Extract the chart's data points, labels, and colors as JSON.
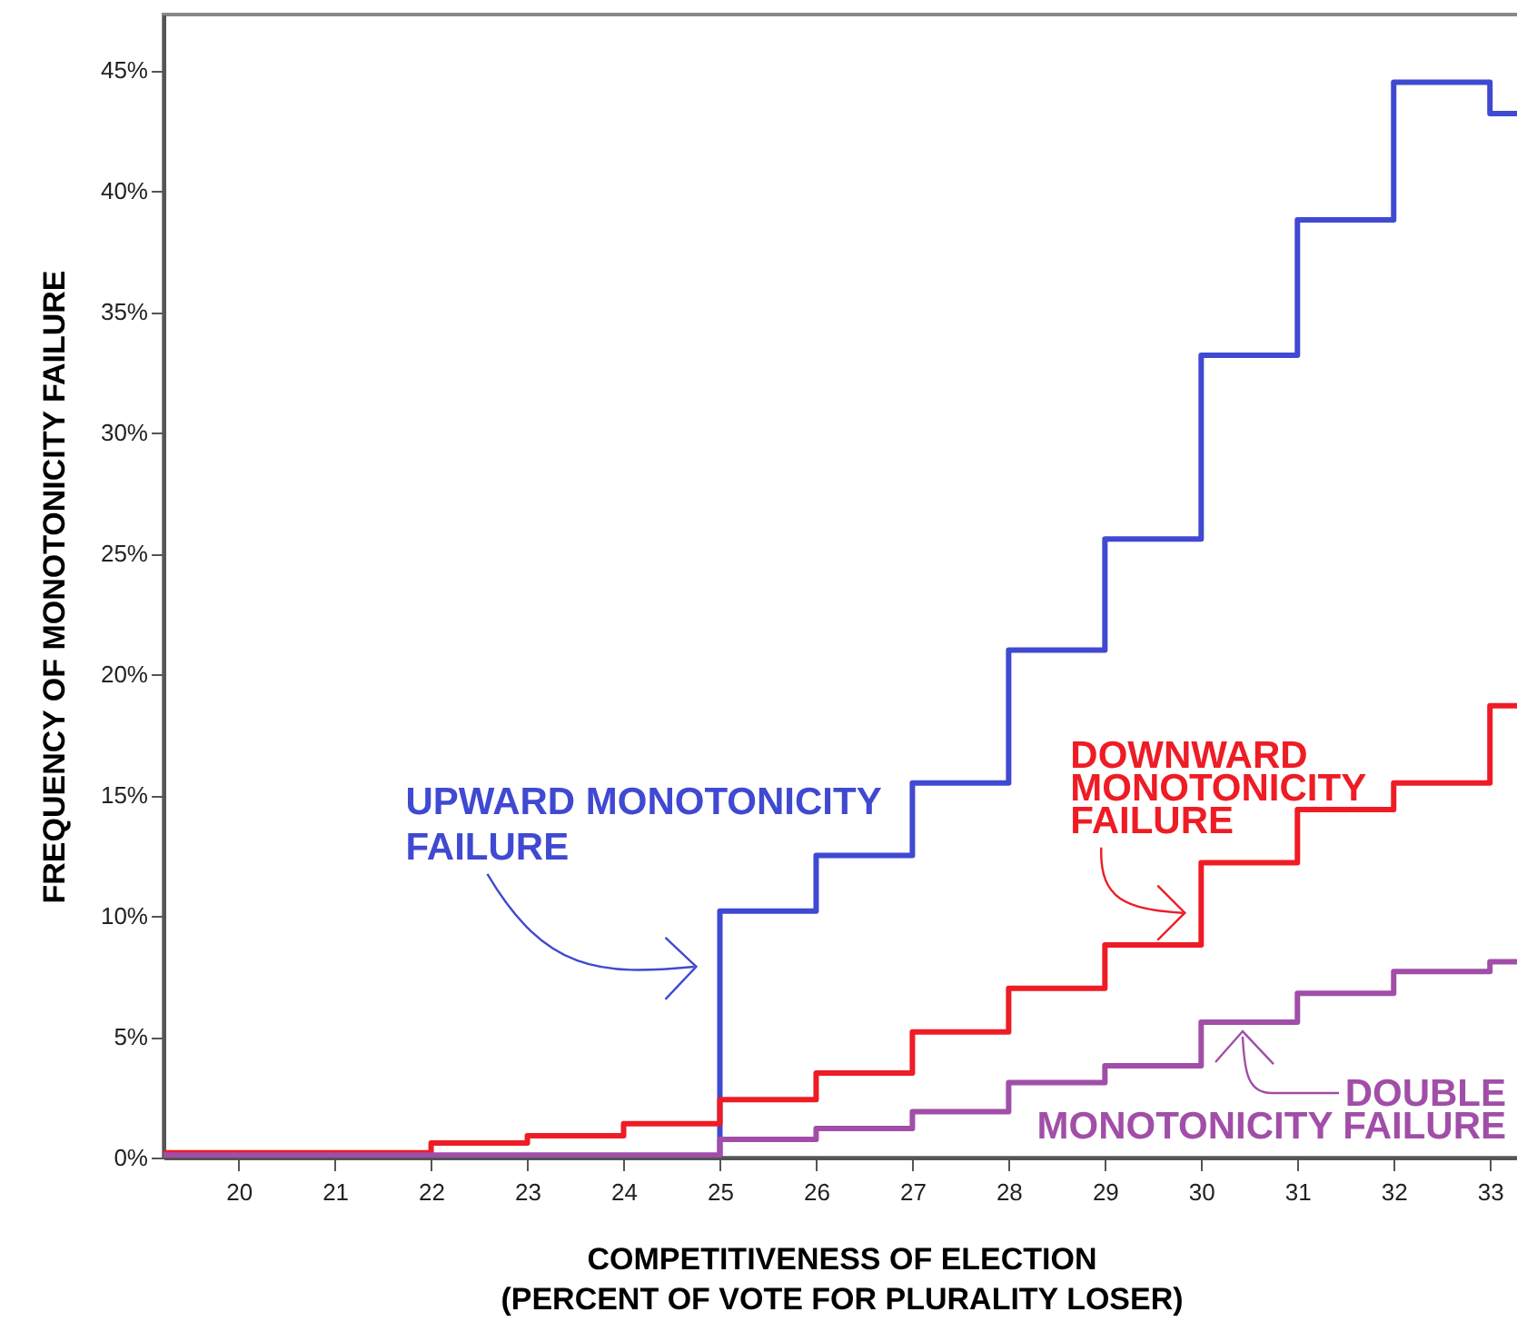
{
  "chart_data": {
    "type": "step",
    "xlabel": "COMPETITIVENESS OF ELECTION\n(PERCENT OF VOTE FOR PLURALITY LOSER)",
    "ylabel": "FREQUENCY OF MONOTONICITY FAILURE",
    "x": [
      19.22,
      22,
      23,
      24,
      25,
      26,
      27,
      28,
      29,
      30,
      31,
      32,
      33,
      33.3
    ],
    "series": [
      {
        "color": "#4049d1",
        "x": [
          25,
          25,
          26,
          27,
          28,
          29,
          30,
          31,
          32,
          33,
          33.3
        ],
        "values": [
          0,
          10.2,
          12.5,
          15.5,
          21,
          25.6,
          33.2,
          38.8,
          44.5,
          43.2,
          43.2
        ]
      },
      {
        "color": "#ee1c25",
        "values": [
          0.2,
          0.6,
          0.9,
          1.4,
          2.4,
          3.5,
          5.2,
          7,
          8.8,
          12.2,
          14.4,
          15.5,
          18.7,
          18.7
        ]
      },
      {
        "color": "#a14ea8",
        "values": [
          0.1,
          0.1,
          0.1,
          0.1,
          0.75,
          1.2,
          1.9,
          3.1,
          3.8,
          5.6,
          6.8,
          7.7,
          8.1,
          8.1
        ]
      }
    ],
    "xlim": [
      19.22,
      33.3
    ],
    "xticks": [
      20,
      21,
      22,
      23,
      24,
      25,
      26,
      27,
      28,
      29,
      30,
      31,
      32,
      33
    ],
    "ylim": [
      0,
      47.3
    ],
    "yticks": [
      {
        "value": 0,
        "label": "0%"
      },
      {
        "value": 5,
        "label": "5%"
      },
      {
        "value": 10,
        "label": "10%"
      },
      {
        "value": 15,
        "label": "15%"
      },
      {
        "value": 20,
        "label": "20%"
      },
      {
        "value": 25,
        "label": "25%"
      },
      {
        "value": 30,
        "label": "30%"
      },
      {
        "value": 35,
        "label": "35%"
      },
      {
        "value": 40,
        "label": "40%"
      },
      {
        "value": 45,
        "label": "45%"
      }
    ],
    "annotations": [
      {
        "text": "UPWARD MONOTONICITY\nFAILURE",
        "x": 25,
        "y": 7.9
      },
      {
        "text": "DOWNWARD\nMONOTONICITY\nFAILURE",
        "x": 30,
        "y": 10.2
      },
      {
        "text": "DOUBLE\nMONOTONICITY FAILURE",
        "x": 30.45,
        "y": 5.6
      }
    ],
    "grid": false,
    "line_style": "solid",
    "marker": "none"
  }
}
